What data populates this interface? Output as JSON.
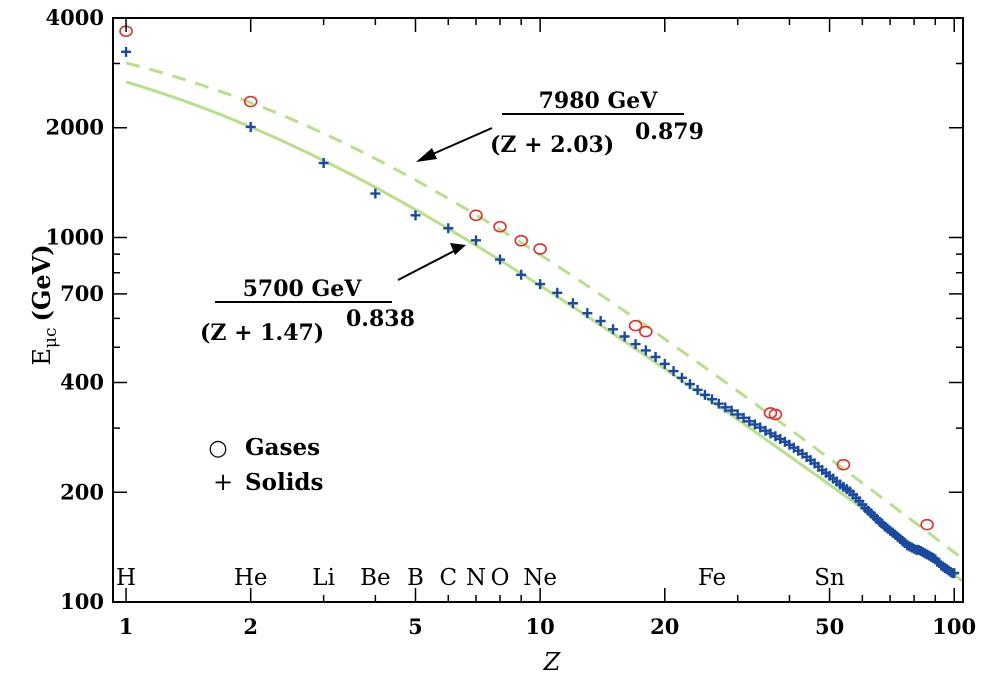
{
  "chart_data": {
    "type": "scatter",
    "x_scale": "log",
    "y_scale": "log",
    "xlim": [
      0.93,
      105
    ],
    "ylim": [
      100,
      4000
    ],
    "xlabel": "Z",
    "ylabel": "E",
    "ylabel_subscript": "μc",
    "ylabel_unit": "(GeV)",
    "x_ticks": [
      {
        "value": 1,
        "label": "1"
      },
      {
        "value": 2,
        "label": "2"
      },
      {
        "value": 5,
        "label": "5"
      },
      {
        "value": 10,
        "label": "10"
      },
      {
        "value": 20,
        "label": "20"
      },
      {
        "value": 50,
        "label": "50"
      },
      {
        "value": 100,
        "label": "100"
      }
    ],
    "y_ticks": [
      {
        "value": 100,
        "label": "100"
      },
      {
        "value": 200,
        "label": "200"
      },
      {
        "value": 400,
        "label": "400"
      },
      {
        "value": 700,
        "label": "700"
      },
      {
        "value": 1000,
        "label": "1000"
      },
      {
        "value": 2000,
        "label": "2000"
      },
      {
        "value": 4000,
        "label": "4000"
      }
    ],
    "grid": false,
    "legend_position": "lower-left",
    "series": [
      {
        "name": "Gases",
        "marker": "circle",
        "color": "#e03030",
        "points": [
          [
            1,
            3680
          ],
          [
            2,
            2360
          ],
          [
            7,
            1150
          ],
          [
            8,
            1070
          ],
          [
            9,
            980
          ],
          [
            10,
            930
          ],
          [
            17,
            573
          ],
          [
            18,
            552
          ],
          [
            36,
            330
          ],
          [
            37,
            327
          ],
          [
            54,
            238
          ],
          [
            86,
            163
          ]
        ]
      },
      {
        "name": "Solids",
        "marker": "plus",
        "color": "#1a4aa0",
        "points": [
          [
            1,
            3230
          ],
          [
            2,
            2010
          ],
          [
            3,
            1600
          ],
          [
            4,
            1320
          ],
          [
            5,
            1150
          ],
          [
            6,
            1060
          ],
          [
            7,
            982
          ],
          [
            8,
            870
          ],
          [
            9,
            790
          ],
          [
            10,
            745
          ],
          [
            11,
            705
          ],
          [
            12,
            660
          ],
          [
            13,
            620
          ],
          [
            14,
            590
          ],
          [
            15,
            560
          ],
          [
            16,
            535
          ],
          [
            17,
            510
          ],
          [
            18,
            490
          ],
          [
            19,
            470
          ],
          [
            20,
            450
          ],
          [
            21,
            430
          ],
          [
            22,
            412
          ],
          [
            23,
            396
          ],
          [
            24,
            382
          ],
          [
            25,
            370
          ],
          [
            26,
            360
          ],
          [
            27,
            350
          ],
          [
            28,
            342
          ],
          [
            29,
            335
          ],
          [
            30,
            327
          ],
          [
            31,
            320
          ],
          [
            32,
            313
          ],
          [
            33,
            307
          ],
          [
            34,
            301
          ],
          [
            35,
            295
          ],
          [
            36,
            290
          ],
          [
            37,
            285
          ],
          [
            38,
            280
          ],
          [
            39,
            275
          ],
          [
            40,
            270
          ],
          [
            41,
            265
          ],
          [
            42,
            260
          ],
          [
            43,
            255
          ],
          [
            44,
            250
          ],
          [
            45,
            245
          ],
          [
            46,
            240
          ],
          [
            47,
            235
          ],
          [
            48,
            230
          ],
          [
            49,
            226
          ],
          [
            50,
            222
          ],
          [
            51,
            218
          ],
          [
            52,
            214
          ],
          [
            53,
            210
          ],
          [
            54,
            207
          ],
          [
            55,
            204
          ],
          [
            56,
            201
          ],
          [
            57,
            197
          ],
          [
            58,
            193
          ],
          [
            59,
            189
          ],
          [
            60,
            185
          ],
          [
            61,
            181
          ],
          [
            62,
            178
          ],
          [
            63,
            175
          ],
          [
            64,
            172
          ],
          [
            65,
            169
          ],
          [
            66,
            166
          ],
          [
            67,
            164
          ],
          [
            68,
            161
          ],
          [
            69,
            159
          ],
          [
            70,
            157
          ],
          [
            71,
            155
          ],
          [
            72,
            153
          ],
          [
            73,
            151
          ],
          [
            74,
            149
          ],
          [
            75,
            147
          ],
          [
            76,
            145
          ],
          [
            77,
            143
          ],
          [
            78,
            142
          ],
          [
            79,
            141
          ],
          [
            80,
            140
          ],
          [
            81,
            139
          ],
          [
            82,
            139
          ],
          [
            83,
            138
          ],
          [
            84,
            137
          ],
          [
            85,
            136
          ],
          [
            86,
            135
          ],
          [
            87,
            134
          ],
          [
            88,
            133
          ],
          [
            89,
            132
          ],
          [
            90,
            131
          ],
          [
            91,
            129
          ],
          [
            92,
            128
          ],
          [
            93,
            126
          ],
          [
            94,
            125
          ],
          [
            95,
            124
          ],
          [
            96,
            123
          ],
          [
            97,
            122
          ],
          [
            98,
            121
          ],
          [
            99,
            120
          ],
          [
            100,
            120
          ]
        ]
      }
    ],
    "fits": [
      {
        "style": "dashed",
        "color": "#b8e08a",
        "numerator": "7980 GeV",
        "denominator": "(Z + 2.03)",
        "exponent": "0.879",
        "A": 7980,
        "b": 2.03,
        "p": 0.879
      },
      {
        "style": "solid",
        "color": "#b8e08a",
        "numerator": "5700 GeV",
        "denominator": "(Z + 1.47)",
        "exponent": "0.838",
        "A": 5700,
        "b": 1.47,
        "p": 0.838
      }
    ],
    "element_labels": [
      {
        "text": "H",
        "z": 1
      },
      {
        "text": "He",
        "z": 2
      },
      {
        "text": "Li",
        "z": 3
      },
      {
        "text": "Be",
        "z": 4
      },
      {
        "text": "B",
        "z": 5
      },
      {
        "text": "C",
        "z": 6
      },
      {
        "text": "N",
        "z": 7
      },
      {
        "text": "O",
        "z": 8
      },
      {
        "text": "Ne",
        "z": 10
      },
      {
        "text": "Fe",
        "z": 26
      },
      {
        "text": "Sn",
        "z": 50
      }
    ],
    "legend": [
      {
        "symbol": "○",
        "label": "Gases"
      },
      {
        "symbol": "+",
        "label": "Solids"
      }
    ]
  }
}
